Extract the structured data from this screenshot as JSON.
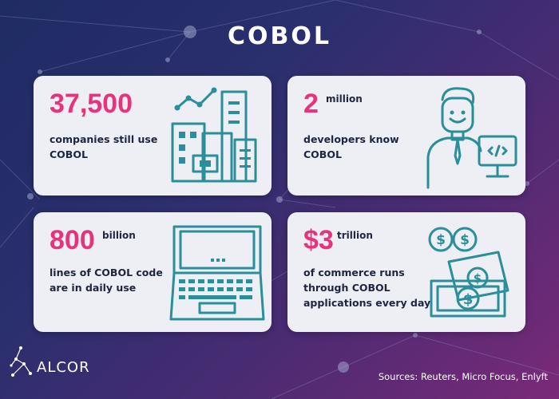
{
  "title": "COBOL",
  "cards": [
    {
      "number": "37,500",
      "unit": "",
      "desc_line1": "companies still use",
      "desc_line2": "COBOL",
      "icon": "buildings-chart-icon"
    },
    {
      "number": "2",
      "unit": "million",
      "desc_line1": "developers know",
      "desc_line2": "COBOL",
      "icon": "developer-icon"
    },
    {
      "number": "800",
      "unit": "billion",
      "desc_line1": "lines of COBOL code",
      "desc_line2": "are in daily use",
      "icon": "laptop-icon"
    },
    {
      "number": "$3",
      "unit": "trillion",
      "desc_line1": "of commerce runs",
      "desc_line2": "through COBOL",
      "desc_line3": "applications every day",
      "icon": "money-icon"
    }
  ],
  "brand": {
    "name": "ALCOR"
  },
  "sources": "Sources: Reuters, Micro Focus, Enlyft",
  "colors": {
    "accent": "#e8327c",
    "icon": "#2a8f9a",
    "card": "#eeeef5"
  }
}
